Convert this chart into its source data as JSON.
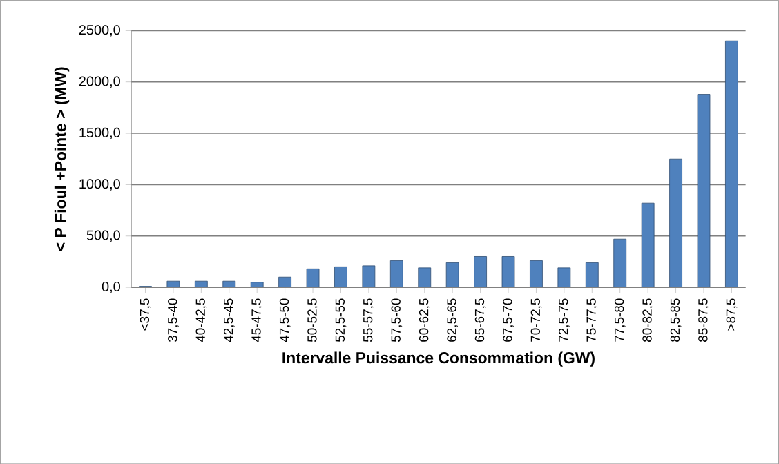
{
  "chart_data": {
    "type": "bar",
    "xlabel": "Intervalle Puissance Consommation (GW)",
    "ylabel": "< P Fioul +Pointe > (MW)",
    "categories": [
      "<37,5",
      "37,5-40",
      "40-42,5",
      "42,5-45",
      "45-47,5",
      "47,5-50",
      "50-52,5",
      "52,5-55",
      "55-57,5",
      "57,5-60",
      "60-62,5",
      "62,5-65",
      "65-67,5",
      "67,5-70",
      "70-72,5",
      "72,5-75",
      "75-77,5",
      "77,5-80",
      "80-82,5",
      "82,5-85",
      "85-87,5",
      ">87,5"
    ],
    "values": [
      10,
      60,
      60,
      60,
      50,
      100,
      180,
      200,
      210,
      260,
      190,
      240,
      300,
      300,
      260,
      190,
      240,
      470,
      820,
      1250,
      1880,
      2400
    ],
    "color": "#4f81bd",
    "ylim": [
      0,
      2500
    ],
    "yticks": [
      {
        "value": 0,
        "label": "0,0"
      },
      {
        "value": 500,
        "label": "500,0"
      },
      {
        "value": 1000,
        "label": "1000,0"
      },
      {
        "value": 1500,
        "label": "1500,0"
      },
      {
        "value": 2000,
        "label": "2000,0"
      },
      {
        "value": 2500,
        "label": "2500,0"
      }
    ],
    "grid": "y"
  }
}
